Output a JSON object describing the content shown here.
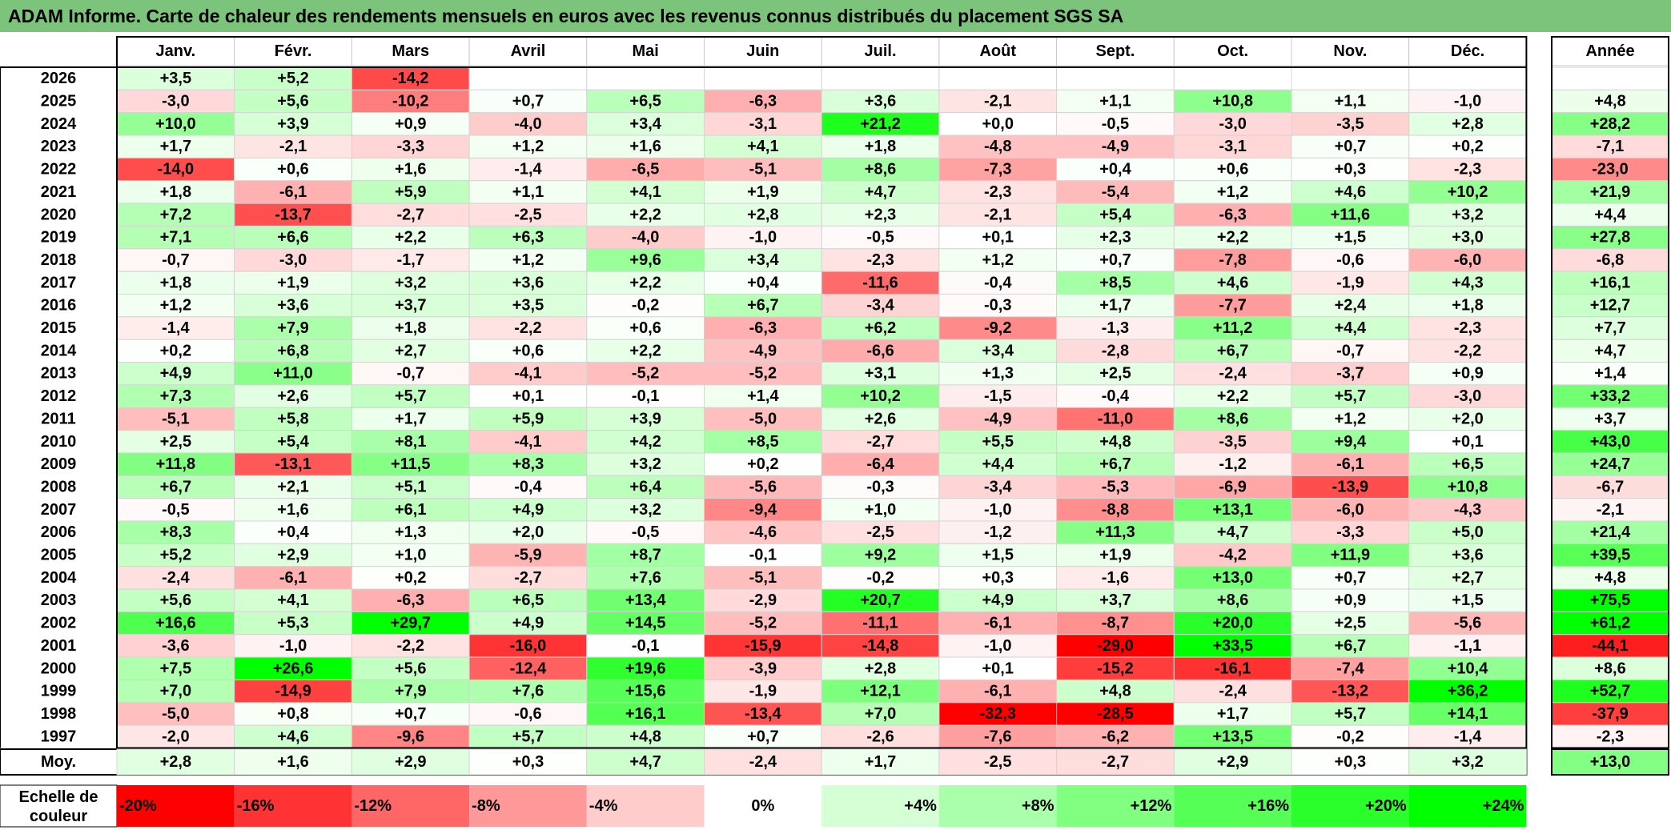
{
  "title": "ADAM Informe. Carte de chaleur des rendements mensuels en euros avec les revenus connus distribués du placement SGS SA",
  "colors": {
    "title_bg": "#7cc47c",
    "negative_max": "#ff0000",
    "neutral": "#ffffff",
    "positive_max": "#00ff00"
  },
  "chart_data": {
    "type": "heatmap",
    "months": [
      "Janv.",
      "Févr.",
      "Mars",
      "Avril",
      "Mai",
      "Juin",
      "Juil.",
      "Août",
      "Sept.",
      "Oct.",
      "Nov.",
      "Déc."
    ],
    "year_header": "Année",
    "rows": [
      {
        "year": "2026",
        "values": [
          "+3,5",
          "+5,2",
          "-14,2",
          "",
          "",
          "",
          "",
          "",
          "",
          "",
          "",
          ""
        ],
        "annual": ""
      },
      {
        "year": "2025",
        "values": [
          "-3,0",
          "+5,6",
          "-10,2",
          "+0,7",
          "+6,5",
          "-6,3",
          "+3,6",
          "-2,1",
          "+1,1",
          "+10,8",
          "+1,1",
          "-1,0"
        ],
        "annual": "+4,8"
      },
      {
        "year": "2024",
        "values": [
          "+10,0",
          "+3,9",
          "+0,9",
          "-4,0",
          "+3,4",
          "-3,1",
          "+21,2",
          "+0,0",
          "-0,5",
          "-3,0",
          "-3,5",
          "+2,8"
        ],
        "annual": "+28,2"
      },
      {
        "year": "2023",
        "values": [
          "+1,7",
          "-2,1",
          "-3,3",
          "+1,2",
          "+1,6",
          "+4,1",
          "+1,8",
          "-4,8",
          "-4,9",
          "-3,1",
          "+0,7",
          "+0,2"
        ],
        "annual": "-7,1"
      },
      {
        "year": "2022",
        "values": [
          "-14,0",
          "+0,6",
          "+1,6",
          "-1,4",
          "-6,5",
          "-5,1",
          "+8,6",
          "-7,3",
          "+0,4",
          "+0,6",
          "+0,3",
          "-2,3"
        ],
        "annual": "-23,0"
      },
      {
        "year": "2021",
        "values": [
          "+1,8",
          "-6,1",
          "+5,9",
          "+1,1",
          "+4,1",
          "+1,9",
          "+4,7",
          "-2,3",
          "-5,4",
          "+1,2",
          "+4,6",
          "+10,2"
        ],
        "annual": "+21,9"
      },
      {
        "year": "2020",
        "values": [
          "+7,2",
          "-13,7",
          "-2,7",
          "-2,5",
          "+2,2",
          "+2,8",
          "+2,3",
          "-2,1",
          "+5,4",
          "-6,3",
          "+11,6",
          "+3,2"
        ],
        "annual": "+4,4"
      },
      {
        "year": "2019",
        "values": [
          "+7,1",
          "+6,6",
          "+2,2",
          "+6,3",
          "-4,0",
          "-1,0",
          "-0,5",
          "+0,1",
          "+2,3",
          "+2,2",
          "+1,5",
          "+3,0"
        ],
        "annual": "+27,8"
      },
      {
        "year": "2018",
        "values": [
          "-0,7",
          "-3,0",
          "-1,7",
          "+1,2",
          "+9,6",
          "+3,4",
          "-2,3",
          "+1,2",
          "+0,7",
          "-7,8",
          "-0,6",
          "-6,0"
        ],
        "annual": "-6,8"
      },
      {
        "year": "2017",
        "values": [
          "+1,8",
          "+1,9",
          "+3,2",
          "+3,6",
          "+2,2",
          "+0,4",
          "-11,6",
          "-0,4",
          "+8,5",
          "+4,6",
          "-1,9",
          "+4,3"
        ],
        "annual": "+16,1"
      },
      {
        "year": "2016",
        "values": [
          "+1,2",
          "+3,6",
          "+3,7",
          "+3,5",
          "-0,2",
          "+6,7",
          "-3,4",
          "-0,3",
          "+1,7",
          "-7,7",
          "+2,4",
          "+1,8"
        ],
        "annual": "+12,7"
      },
      {
        "year": "2015",
        "values": [
          "-1,4",
          "+7,9",
          "+1,8",
          "-2,2",
          "+0,6",
          "-6,3",
          "+6,2",
          "-9,2",
          "-1,3",
          "+11,2",
          "+4,4",
          "-2,3"
        ],
        "annual": "+7,7"
      },
      {
        "year": "2014",
        "values": [
          "+0,2",
          "+6,8",
          "+2,7",
          "+0,6",
          "+2,2",
          "-4,9",
          "-6,6",
          "+3,4",
          "-2,8",
          "+6,7",
          "-0,7",
          "-2,2"
        ],
        "annual": "+4,7"
      },
      {
        "year": "2013",
        "values": [
          "+4,9",
          "+11,0",
          "-0,7",
          "-4,1",
          "-5,2",
          "-5,2",
          "+3,1",
          "+1,3",
          "+2,5",
          "-2,4",
          "-3,7",
          "+0,9"
        ],
        "annual": "+1,4"
      },
      {
        "year": "2012",
        "values": [
          "+7,3",
          "+2,6",
          "+5,7",
          "+0,1",
          "-0,1",
          "+1,4",
          "+10,2",
          "-1,5",
          "-0,4",
          "+2,2",
          "+5,7",
          "-3,0"
        ],
        "annual": "+33,2"
      },
      {
        "year": "2011",
        "values": [
          "-5,1",
          "+5,8",
          "+1,7",
          "+5,9",
          "+3,9",
          "-5,0",
          "+2,6",
          "-4,9",
          "-11,0",
          "+8,6",
          "+1,2",
          "+2,0"
        ],
        "annual": "+3,7"
      },
      {
        "year": "2010",
        "values": [
          "+2,5",
          "+5,4",
          "+8,1",
          "-4,1",
          "+4,2",
          "+8,5",
          "-2,7",
          "+5,5",
          "+4,8",
          "-3,5",
          "+9,4",
          "+0,1"
        ],
        "annual": "+43,0"
      },
      {
        "year": "2009",
        "values": [
          "+11,8",
          "-13,1",
          "+11,5",
          "+8,3",
          "+3,2",
          "+0,2",
          "-6,4",
          "+4,4",
          "+6,7",
          "-1,2",
          "-6,1",
          "+6,5"
        ],
        "annual": "+24,7"
      },
      {
        "year": "2008",
        "values": [
          "+6,7",
          "+2,1",
          "+5,1",
          "-0,4",
          "+6,4",
          "-5,6",
          "-0,3",
          "-3,4",
          "-5,3",
          "-6,9",
          "-13,9",
          "+10,8"
        ],
        "annual": "-6,7"
      },
      {
        "year": "2007",
        "values": [
          "-0,5",
          "+1,6",
          "+6,1",
          "+4,9",
          "+3,2",
          "-9,4",
          "+1,0",
          "-1,0",
          "-8,8",
          "+13,1",
          "-6,0",
          "-4,3"
        ],
        "annual": "-2,1"
      },
      {
        "year": "2006",
        "values": [
          "+8,3",
          "+0,4",
          "+1,3",
          "+2,0",
          "-0,5",
          "-4,6",
          "-2,5",
          "-1,2",
          "+11,3",
          "+4,7",
          "-3,3",
          "+5,0"
        ],
        "annual": "+21,4"
      },
      {
        "year": "2005",
        "values": [
          "+5,2",
          "+2,9",
          "+1,0",
          "-5,9",
          "+8,7",
          "-0,1",
          "+9,2",
          "+1,5",
          "+1,9",
          "-4,2",
          "+11,9",
          "+3,6"
        ],
        "annual": "+39,5"
      },
      {
        "year": "2004",
        "values": [
          "-2,4",
          "-6,1",
          "+0,2",
          "-2,7",
          "+7,6",
          "-5,1",
          "-0,2",
          "+0,3",
          "-1,6",
          "+13,0",
          "+0,7",
          "+2,7"
        ],
        "annual": "+4,8"
      },
      {
        "year": "2003",
        "values": [
          "+5,6",
          "+4,1",
          "-6,3",
          "+6,5",
          "+13,4",
          "-2,9",
          "+20,7",
          "+4,9",
          "+3,7",
          "+8,6",
          "+0,9",
          "+1,5"
        ],
        "annual": "+75,5"
      },
      {
        "year": "2002",
        "values": [
          "+16,6",
          "+5,3",
          "+29,7",
          "+4,9",
          "+14,5",
          "-5,2",
          "-11,1",
          "-6,1",
          "-8,7",
          "+20,0",
          "+2,5",
          "-5,6"
        ],
        "annual": "+61,2"
      },
      {
        "year": "2001",
        "values": [
          "-3,6",
          "-1,0",
          "-2,2",
          "-16,0",
          "-0,1",
          "-15,9",
          "-14,8",
          "-1,0",
          "-29,0",
          "+33,5",
          "+6,7",
          "-1,1"
        ],
        "annual": "-44,1"
      },
      {
        "year": "2000",
        "values": [
          "+7,5",
          "+26,6",
          "+5,6",
          "-12,4",
          "+19,6",
          "-3,9",
          "+2,8",
          "+0,1",
          "-15,2",
          "-16,1",
          "-7,4",
          "+10,4"
        ],
        "annual": "+8,6"
      },
      {
        "year": "1999",
        "values": [
          "+7,0",
          "-14,9",
          "+7,9",
          "+7,6",
          "+15,6",
          "-1,9",
          "+12,1",
          "-6,1",
          "+4,8",
          "-2,4",
          "-13,2",
          "+36,2"
        ],
        "annual": "+52,7"
      },
      {
        "year": "1998",
        "values": [
          "-5,0",
          "+0,8",
          "+0,7",
          "-0,6",
          "+16,1",
          "-13,4",
          "+7,0",
          "-32,3",
          "-28,5",
          "+1,7",
          "+5,7",
          "+14,1"
        ],
        "annual": "-37,9"
      },
      {
        "year": "1997",
        "values": [
          "-2,0",
          "+4,6",
          "-9,6",
          "+5,7",
          "+4,8",
          "+0,7",
          "-2,6",
          "-7,6",
          "-6,2",
          "+13,5",
          "-0,2",
          "-1,4"
        ],
        "annual": "-2,3"
      }
    ],
    "average": {
      "label": "Moy.",
      "values": [
        "+2,8",
        "+1,6",
        "+2,9",
        "+0,3",
        "+4,7",
        "-2,4",
        "+1,7",
        "-2,5",
        "-2,7",
        "+2,9",
        "+0,3",
        "+3,2"
      ],
      "annual": "+13,0"
    },
    "scale": {
      "label_lines": [
        "Echelle de",
        "couleur"
      ],
      "labels": [
        "-20%",
        "-16%",
        "-12%",
        "-8%",
        "-4%",
        "0%",
        "+4%",
        "+8%",
        "+12%",
        "+16%",
        "+20%",
        "+24%"
      ],
      "values": [
        -20,
        -16,
        -12,
        -8,
        -4,
        0,
        4,
        8,
        12,
        16,
        20,
        24
      ]
    }
  }
}
